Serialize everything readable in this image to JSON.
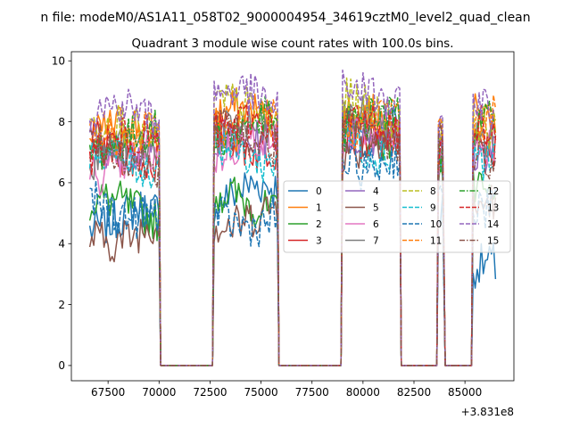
{
  "figure": {
    "suptitle": "n file: modeM0/AS1A11_058T02_9000004954_34619cztM0_level2_quad_clean",
    "offset_label": "+3.831e8"
  },
  "chart_data": {
    "type": "line",
    "title": "Quadrant 3 module wise count rates with 100.0s bins.",
    "xlabel": "",
    "ylabel": "",
    "xlim": [
      65700,
      87400
    ],
    "ylim": [
      -0.5,
      10.3
    ],
    "x_offset": 383100000,
    "x_ticks": [
      67500,
      70000,
      72500,
      75000,
      77500,
      80000,
      82500,
      85000
    ],
    "x_tick_labels": [
      "67500",
      "70000",
      "72500",
      "75000",
      "77500",
      "80000",
      "82500",
      "85000"
    ],
    "y_ticks": [
      0,
      2,
      4,
      6,
      8,
      10
    ],
    "y_tick_labels": [
      "0",
      "2",
      "4",
      "6",
      "8",
      "10"
    ],
    "grid": false,
    "legend_position": "center-right",
    "legend_columns": 4,
    "gti_segments": [
      {
        "start": 66600,
        "end": 70000
      },
      {
        "start": 72700,
        "end": 75800
      },
      {
        "start": 79000,
        "end": 81800
      },
      {
        "start": 83700,
        "end": 83950
      },
      {
        "start": 85400,
        "end": 86500
      }
    ],
    "bin_width_s": 100,
    "series": [
      {
        "name": "0",
        "color": "#1f77b4",
        "dash": "solid",
        "levels": [
          4.8,
          5.6,
          7.8,
          5.4,
          3.0
        ]
      },
      {
        "name": "1",
        "color": "#ff7f0e",
        "dash": "solid",
        "levels": [
          7.6,
          8.1,
          8.0,
          7.7,
          7.9
        ]
      },
      {
        "name": "2",
        "color": "#2ca02c",
        "dash": "solid",
        "levels": [
          5.1,
          5.3,
          7.7,
          6.2,
          5.6
        ]
      },
      {
        "name": "3",
        "color": "#d62728",
        "dash": "solid",
        "levels": [
          7.0,
          7.4,
          7.6,
          7.0,
          7.4
        ]
      },
      {
        "name": "4",
        "color": "#9467bd",
        "dash": "solid",
        "levels": [
          7.3,
          7.6,
          7.8,
          7.1,
          7.3
        ]
      },
      {
        "name": "5",
        "color": "#8c564b",
        "dash": "solid",
        "levels": [
          4.4,
          4.9,
          7.3,
          6.9,
          5.3
        ]
      },
      {
        "name": "6",
        "color": "#e377c2",
        "dash": "solid",
        "levels": [
          6.6,
          7.2,
          7.5,
          6.9,
          7.0
        ]
      },
      {
        "name": "7",
        "color": "#7f7f7f",
        "dash": "solid",
        "levels": [
          6.9,
          7.5,
          7.8,
          7.2,
          7.1
        ]
      },
      {
        "name": "8",
        "color": "#bcbd22",
        "dash": "dashed",
        "levels": [
          7.7,
          8.3,
          8.4,
          7.8,
          7.8
        ]
      },
      {
        "name": "9",
        "color": "#17becf",
        "dash": "dashed",
        "levels": [
          6.8,
          7.0,
          7.3,
          6.6,
          7.0
        ]
      },
      {
        "name": "10",
        "color": "#1f77b4",
        "dash": "dashed",
        "levels": [
          5.2,
          4.9,
          6.8,
          5.5,
          5.5
        ]
      },
      {
        "name": "11",
        "color": "#ff7f0e",
        "dash": "dashed",
        "levels": [
          7.8,
          8.0,
          8.1,
          7.6,
          8.2
        ]
      },
      {
        "name": "12",
        "color": "#2ca02c",
        "dash": "dashdot",
        "levels": [
          7.4,
          7.8,
          7.9,
          7.3,
          7.7
        ]
      },
      {
        "name": "13",
        "color": "#d62728",
        "dash": "dashed",
        "levels": [
          7.2,
          7.7,
          7.7,
          7.2,
          7.6
        ]
      },
      {
        "name": "14",
        "color": "#9467bd",
        "dash": "dashed",
        "levels": [
          8.2,
          8.7,
          8.8,
          8.0,
          8.4
        ]
      },
      {
        "name": "15",
        "color": "#8c564b",
        "dash": "dashdot",
        "levels": [
          6.9,
          7.5,
          7.6,
          7.2,
          7.0
        ]
      }
    ]
  }
}
